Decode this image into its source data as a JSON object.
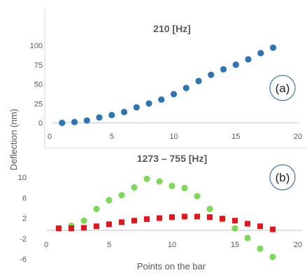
{
  "ylabel": "Deflection (nm)",
  "xlabel": "Points on the bar",
  "chart_data": [
    {
      "type": "scatter",
      "title": "210 [Hz]",
      "panel_label": "(a)",
      "xlim": [
        0,
        20
      ],
      "ylim": [
        0,
        100
      ],
      "xticks": [
        0,
        5,
        10,
        15,
        20
      ],
      "yticks": [
        0,
        25,
        50,
        75,
        100
      ],
      "series": [
        {
          "color": "#2e75b6",
          "marker": "circle",
          "x": [
            1,
            2,
            3,
            4,
            5,
            6,
            7,
            8,
            9,
            10,
            11,
            12,
            13,
            14,
            15,
            16,
            17,
            18
          ],
          "y": [
            0,
            1,
            3,
            7,
            10,
            14,
            20,
            25,
            30,
            37,
            45,
            54,
            62,
            69,
            75,
            82,
            90,
            97
          ]
        }
      ]
    },
    {
      "type": "scatter",
      "title": "1273 – 755 [Hz]",
      "panel_label": "(b)",
      "xlim": [
        0,
        20
      ],
      "ylim": [
        -6,
        10
      ],
      "xticks": [
        0,
        5,
        10,
        15,
        20
      ],
      "yticks": [
        10,
        6,
        2,
        -2,
        -6
      ],
      "series": [
        {
          "color": "#7ed957",
          "marker": "circle",
          "x": [
            1,
            2,
            3,
            4,
            5,
            6,
            7,
            8,
            9,
            10,
            11,
            12,
            13,
            14,
            15,
            16,
            17,
            18
          ],
          "y": [
            0,
            0.5,
            1.5,
            3.8,
            5.5,
            6.5,
            8,
            9.7,
            9.2,
            8.3,
            7.9,
            6.3,
            3.8,
            1.8,
            0,
            -1.9,
            -4,
            -5.6
          ]
        },
        {
          "color": "#e8141c",
          "marker": "square",
          "x": [
            1,
            2,
            3,
            4,
            5,
            6,
            7,
            8,
            9,
            10,
            11,
            12,
            13,
            14,
            15,
            16,
            17,
            18
          ],
          "y": [
            0,
            0,
            0.1,
            0.4,
            0.8,
            1.2,
            1.5,
            1.8,
            2.0,
            2.2,
            2.3,
            2.3,
            2.2,
            1.9,
            1.5,
            0.9,
            0.4,
            -0.2
          ]
        }
      ]
    }
  ]
}
